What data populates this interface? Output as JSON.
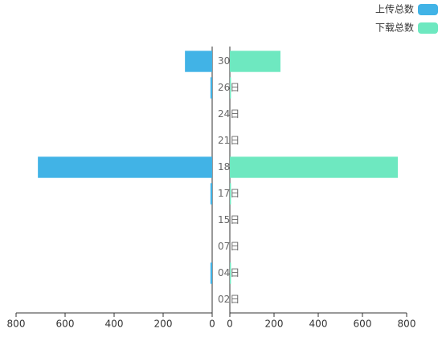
{
  "chart_data": {
    "type": "butterfly-bar",
    "categories": [
      "30",
      "26日",
      "24日",
      "21日",
      "18",
      "17日",
      "15日",
      "07日",
      "04日",
      "02日"
    ],
    "series": [
      {
        "name": "上传总数",
        "color": "#41b3e6",
        "values": [
          111,
          7,
          0,
          0,
          711,
          7,
          0,
          0,
          7,
          0
        ]
      },
      {
        "name": "下载总数",
        "color": "#6ee8c0",
        "values": [
          229,
          5,
          0,
          0,
          760,
          5,
          0,
          0,
          5,
          0
        ]
      }
    ],
    "xlim": [
      0,
      800
    ],
    "xticks": [
      0,
      200,
      400,
      600,
      800
    ],
    "legend": "top-right"
  }
}
